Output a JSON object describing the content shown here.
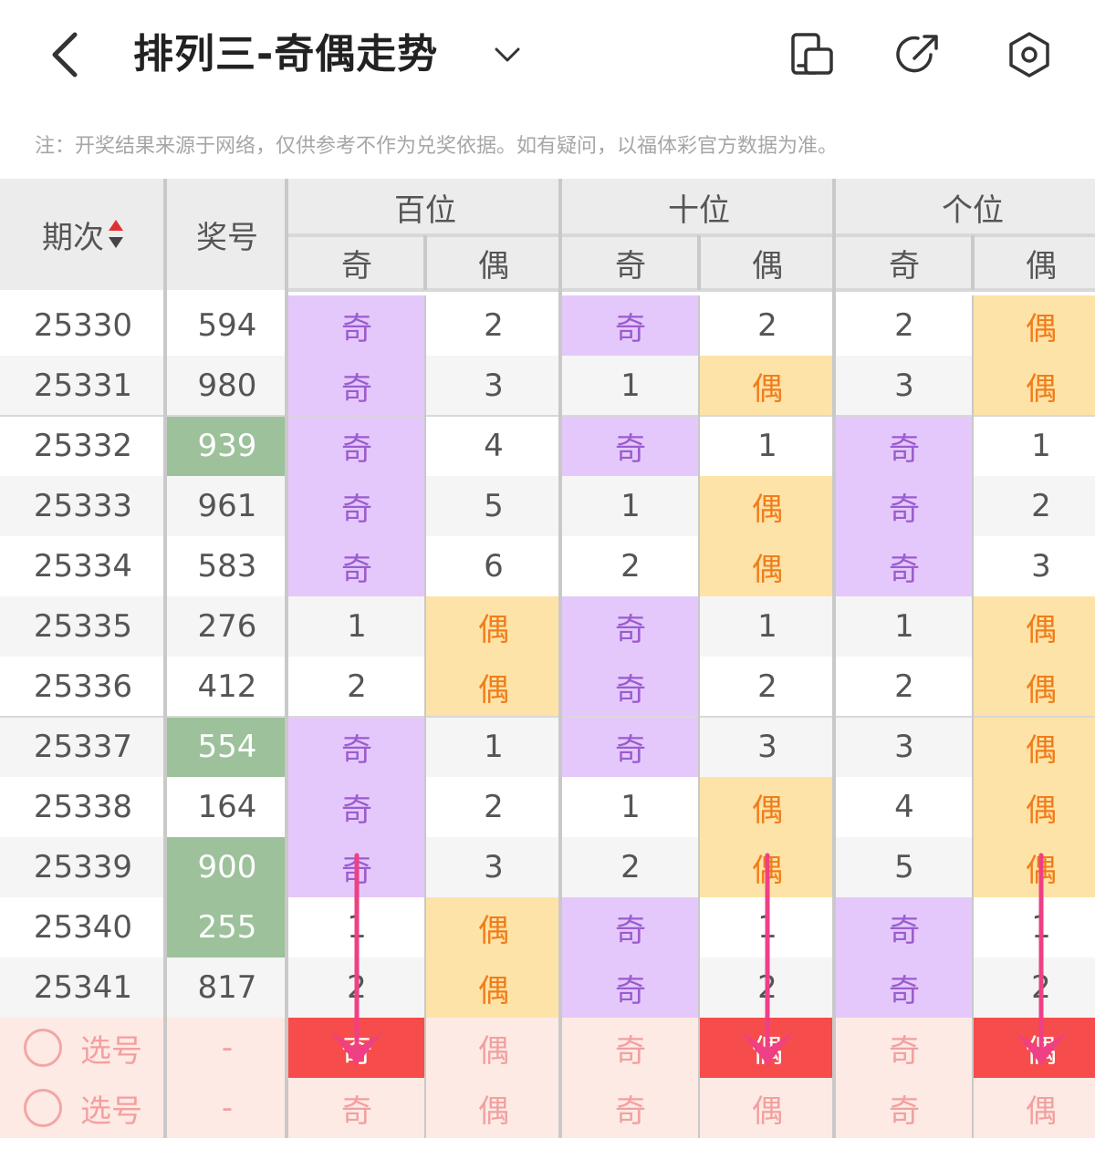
{
  "header": {
    "title": "排列三-奇偶走势"
  },
  "note": "注：开奖结果来源于网络，仅供参考不作为兑奖依据。如有疑问，以福体彩官方数据为准。",
  "table": {
    "col_period": "期次",
    "col_number": "奖号",
    "groups": [
      "百位",
      "十位",
      "个位"
    ],
    "sub_odd": "奇",
    "sub_even": "偶",
    "rows": [
      {
        "period": "25330",
        "number": "594",
        "green": false,
        "cells": [
          "奇",
          "2",
          "奇",
          "2",
          "2",
          "偶"
        ]
      },
      {
        "period": "25331",
        "number": "980",
        "green": false,
        "cells": [
          "奇",
          "3",
          "1",
          "偶",
          "3",
          "偶"
        ]
      },
      {
        "period": "25332",
        "number": "939",
        "green": true,
        "cells": [
          "奇",
          "4",
          "奇",
          "1",
          "奇",
          "1"
        ]
      },
      {
        "period": "25333",
        "number": "961",
        "green": false,
        "cells": [
          "奇",
          "5",
          "1",
          "偶",
          "奇",
          "2"
        ]
      },
      {
        "period": "25334",
        "number": "583",
        "green": false,
        "cells": [
          "奇",
          "6",
          "2",
          "偶",
          "奇",
          "3"
        ]
      },
      {
        "period": "25335",
        "number": "276",
        "green": false,
        "cells": [
          "1",
          "偶",
          "奇",
          "1",
          "1",
          "偶"
        ]
      },
      {
        "period": "25336",
        "number": "412",
        "green": false,
        "cells": [
          "2",
          "偶",
          "奇",
          "2",
          "2",
          "偶"
        ]
      },
      {
        "period": "25337",
        "number": "554",
        "green": true,
        "cells": [
          "奇",
          "1",
          "奇",
          "3",
          "3",
          "偶"
        ]
      },
      {
        "period": "25338",
        "number": "164",
        "green": false,
        "cells": [
          "奇",
          "2",
          "1",
          "偶",
          "4",
          "偶"
        ]
      },
      {
        "period": "25339",
        "number": "900",
        "green": true,
        "cells": [
          "奇",
          "3",
          "2",
          "偶",
          "5",
          "偶"
        ]
      },
      {
        "period": "25340",
        "number": "255",
        "green": true,
        "cells": [
          "1",
          "偶",
          "奇",
          "1",
          "奇",
          "1"
        ]
      },
      {
        "period": "25341",
        "number": "817",
        "green": false,
        "cells": [
          "2",
          "偶",
          "奇",
          "2",
          "奇",
          "2"
        ]
      }
    ],
    "select_rows": [
      {
        "label": "选号",
        "number": "-",
        "cells": [
          "奇",
          "偶",
          "奇",
          "偶",
          "奇",
          "偶"
        ],
        "highlight": [
          0,
          3,
          5
        ]
      },
      {
        "label": "选号",
        "number": "-",
        "cells": [
          "奇",
          "偶",
          "奇",
          "偶",
          "奇",
          "偶"
        ],
        "highlight": []
      }
    ]
  },
  "colors": {
    "odd_bg": "#e4c8fb",
    "even_bg": "#fde3a7",
    "green_bg": "#9dc19b",
    "select_bg": "#fdeae4",
    "select_highlight": "#f64c4c",
    "arrow": "#ef3f85"
  },
  "icons": [
    "back-arrow-icon",
    "chevron-down-icon",
    "device-icon",
    "share-icon",
    "settings-icon",
    "sort-icon"
  ]
}
